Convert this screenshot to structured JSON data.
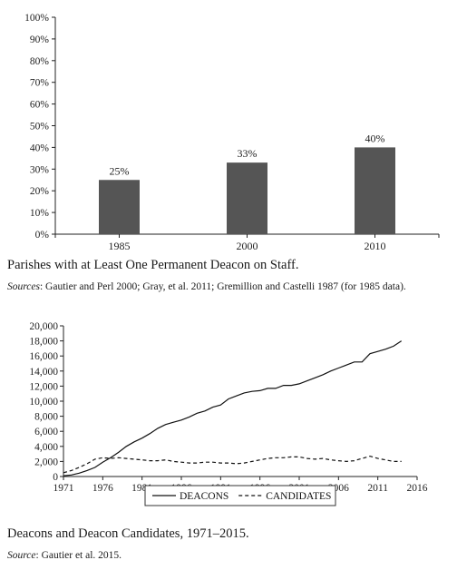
{
  "figures": [
    {
      "caption": "Parishes with at Least One Permanent Deacon on Staff.",
      "source_label": "Sources",
      "source_text": ": Gautier and Perl 2000; Gray, et al. 2011; Gremillion and Castelli 1987 (for 1985 data)."
    },
    {
      "caption": "Deacons and Deacon Candidates, 1971–2015.",
      "source_label": "Source",
      "source_text": ": Gautier et al. 2015."
    }
  ],
  "chart_data": [
    {
      "type": "bar",
      "categories": [
        "1985",
        "2000",
        "2010"
      ],
      "values": [
        25,
        33,
        40
      ],
      "data_labels": [
        "25%",
        "33%",
        "40%"
      ],
      "ylim": [
        0,
        100
      ],
      "yticks": [
        "0%",
        "10%",
        "20%",
        "30%",
        "40%",
        "50%",
        "60%",
        "70%",
        "80%",
        "90%",
        "100%"
      ],
      "bar_color": "#555555",
      "grid": false
    },
    {
      "type": "line",
      "xlim": [
        1971,
        2016
      ],
      "ylim": [
        0,
        20000
      ],
      "xticks": [
        "1971",
        "1976",
        "1981",
        "1986",
        "1991",
        "1996",
        "2001",
        "2006",
        "2011",
        "2016"
      ],
      "yticks": [
        "0",
        "2,000",
        "4,000",
        "6,000",
        "8,000",
        "10,000",
        "12,000",
        "14,000",
        "16,000",
        "18,000",
        "20,000"
      ],
      "legend": "bottom",
      "grid": false,
      "series": [
        {
          "name": "DEACONS",
          "style": "solid",
          "x": [
            1971,
            1972,
            1973,
            1974,
            1975,
            1976,
            1977,
            1978,
            1979,
            1980,
            1981,
            1982,
            1983,
            1984,
            1985,
            1986,
            1987,
            1988,
            1989,
            1990,
            1991,
            1992,
            1993,
            1994,
            1995,
            1996,
            1997,
            1998,
            1999,
            2000,
            2001,
            2002,
            2003,
            2004,
            2005,
            2006,
            2007,
            2008,
            2009,
            2010,
            2011,
            2012,
            2013,
            2014
          ],
          "y": [
            100,
            200,
            450,
            800,
            1200,
            1900,
            2500,
            3200,
            4000,
            4600,
            5100,
            5700,
            6400,
            6900,
            7200,
            7500,
            7900,
            8400,
            8700,
            9200,
            9500,
            10300,
            10700,
            11100,
            11300,
            11400,
            11700,
            11700,
            12100,
            12100,
            12300,
            12700,
            13100,
            13500,
            14000,
            14400,
            14800,
            15200,
            15200,
            16300,
            16600,
            16900,
            17300,
            18000
          ]
        },
        {
          "name": "CANDIDATES",
          "style": "dashed",
          "x": [
            1971,
            1972,
            1973,
            1974,
            1975,
            1976,
            1977,
            1978,
            1979,
            1980,
            1981,
            1982,
            1983,
            1984,
            1985,
            1986,
            1987,
            1988,
            1989,
            1990,
            1991,
            1992,
            1993,
            1994,
            1995,
            1996,
            1997,
            1998,
            1999,
            2000,
            2001,
            2002,
            2003,
            2004,
            2005,
            2006,
            2007,
            2008,
            2009,
            2010,
            2011,
            2012,
            2013,
            2014
          ],
          "y": [
            500,
            800,
            1200,
            1700,
            2300,
            2500,
            2400,
            2500,
            2400,
            2300,
            2200,
            2100,
            2100,
            2200,
            2000,
            1900,
            1800,
            1800,
            1900,
            1900,
            1800,
            1800,
            1700,
            1800,
            2000,
            2200,
            2400,
            2500,
            2500,
            2600,
            2600,
            2400,
            2300,
            2400,
            2200,
            2100,
            2000,
            2100,
            2400,
            2700,
            2400,
            2200,
            2000,
            2000
          ]
        }
      ]
    }
  ]
}
